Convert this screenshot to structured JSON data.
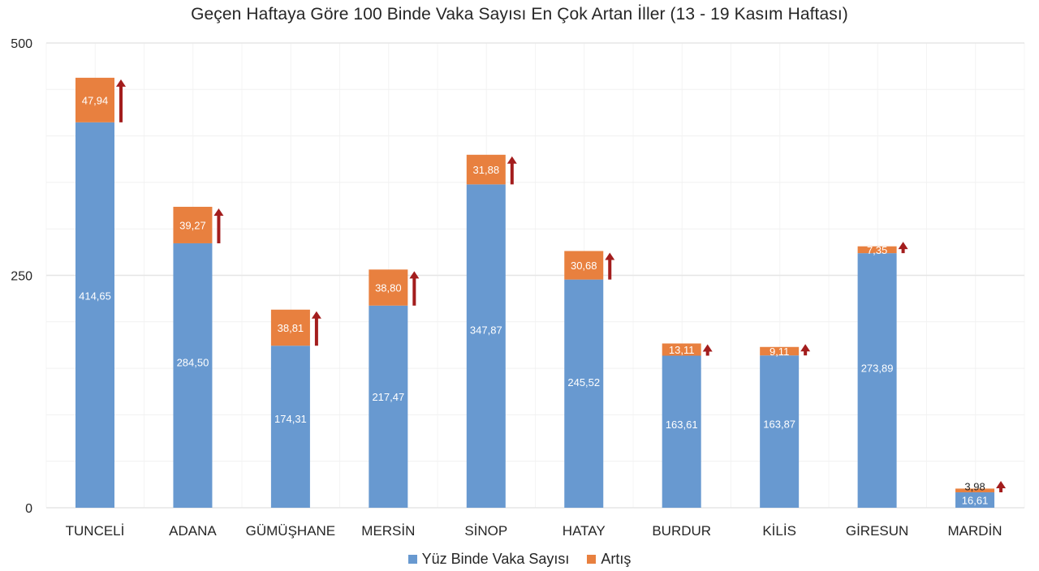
{
  "title": "Geçen Haftaya Göre 100 Binde Vaka Sayısı En Çok Artan İller (13 - 19 Kasım Haftası)",
  "colors": {
    "base": "#6899D0",
    "increase": "#E8803F",
    "arrow": "#A31D1D",
    "grid": "#EDEDED",
    "axis_text": "#262626"
  },
  "legend": {
    "items": [
      {
        "label": "Yüz Binde Vaka Sayısı",
        "color": "#6899D0"
      },
      {
        "label": "Artış",
        "color": "#E8803F"
      }
    ]
  },
  "chart_data": {
    "type": "bar",
    "stacked": true,
    "title": "Geçen Haftaya Göre 100 Binde Vaka Sayısı En Çok Artan İller (13 - 19 Kasım Haftası)",
    "xlabel": "",
    "ylabel": "",
    "ylim": [
      0,
      500
    ],
    "yticks": [
      0,
      250,
      500
    ],
    "grid": true,
    "legend_position": "bottom",
    "categories": [
      "TUNCELİ",
      "ADANA",
      "GÜMÜŞHANE",
      "MERSİN",
      "SİNOP",
      "HATAY",
      "BURDUR",
      "KİLİS",
      "GİRESUN",
      "MARDİN"
    ],
    "series": [
      {
        "name": "Yüz Binde Vaka Sayısı",
        "values": [
          414.65,
          284.5,
          174.31,
          217.47,
          347.87,
          245.52,
          163.61,
          163.87,
          273.89,
          16.61
        ],
        "labels": [
          "414,65",
          "284,50",
          "174,31",
          "217,47",
          "347,87",
          "245,52",
          "163,61",
          "163,87",
          "273,89",
          "16,61"
        ]
      },
      {
        "name": "Artış",
        "values": [
          47.94,
          39.27,
          38.81,
          38.8,
          31.88,
          30.68,
          13.11,
          9.11,
          7.35,
          3.98
        ],
        "labels": [
          "47,94",
          "39,27",
          "38,81",
          "38,80",
          "31,88",
          "30,68",
          "13,11",
          "9,11",
          "7,35",
          "3,98"
        ]
      }
    ],
    "annotations": "Red up-arrow next to each Artış segment indicating increase"
  }
}
